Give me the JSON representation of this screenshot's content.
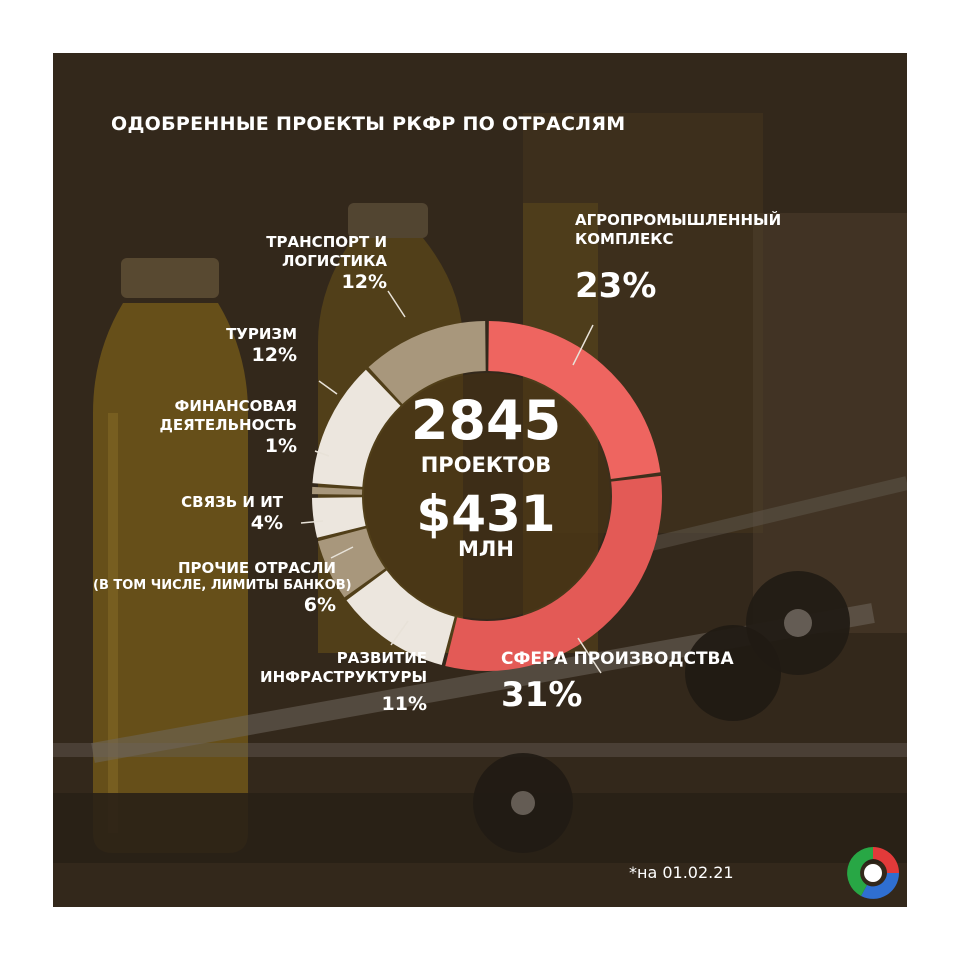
{
  "title": "ОДОБРЕННЫЕ ПРОЕКТЫ РКФР ПО ОТРАСЛЯМ",
  "center": {
    "projects_count": "2845",
    "projects_label": "ПРОЕКТОВ",
    "amount": "$431",
    "amount_label": "МЛН"
  },
  "footnote": "*на 01.02.21",
  "colors": {
    "accent_red": "#e75f5a",
    "light_segment": "#ece6de",
    "muted_segment": "#a8977c",
    "text": "#ffffff"
  },
  "chart_data": {
    "type": "pie",
    "title": "ОДОБРЕННЫЕ ПРОЕКТЫ РКФР ПО ОТРАСЛЯМ",
    "unit": "%",
    "series": [
      {
        "labels": [
          "АГРОПРОМЫШЛЕННЫЙ КОМПЛЕКС",
          "СФЕРА ПРОИЗВОДСТВА",
          "РАЗВИТИЕ ИНФРАСТРУКТУРЫ",
          "ПРОЧИЕ ОТРАСЛИ (В ТОМ ЧИСЛЕ, ЛИМИТЫ БАНКОВ)",
          "СВЯЗЬ И ИТ",
          "ФИНАНСОВАЯ ДЕЯТЕЛЬНОСТЬ",
          "ТУРИЗМ",
          "ТРАНСПОРТ И ЛОГИСТИКА"
        ],
        "values": [
          23,
          31,
          11,
          6,
          4,
          1,
          12,
          12
        ],
        "pct_labels": [
          "23%",
          "31%",
          "11%",
          "6%",
          "4%",
          "1%",
          "12%",
          "12%"
        ],
        "colors": [
          "#ee6560",
          "#e35a56",
          "#ece6de",
          "#a8977c",
          "#ece6de",
          "#a8977c",
          "#ece6de",
          "#a8977c"
        ]
      }
    ]
  }
}
